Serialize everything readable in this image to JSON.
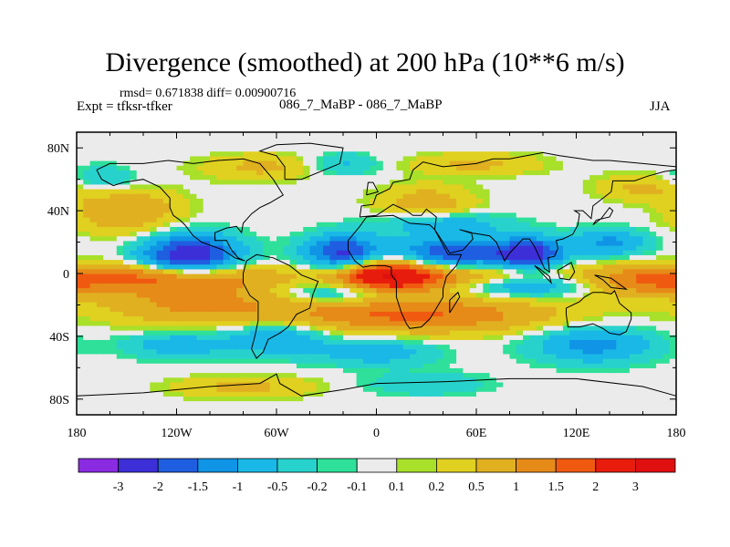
{
  "chart_data": {
    "type": "heatmap",
    "title": "Divergence (smoothed) at 200 hPa (10**6 m/s)",
    "stats_label": "rmsd= 0.671838 diff= 0.00900716",
    "experiment_label": "Expt = tfksr-tfker",
    "case_label": "086_7_MaBP - 086_7_MaBP",
    "season_label": "JJA",
    "x_axis": {
      "range": [
        -180,
        180
      ],
      "ticks": [
        {
          "value": -180,
          "label": "180"
        },
        {
          "value": -120,
          "label": "120W"
        },
        {
          "value": -60,
          "label": "60W"
        },
        {
          "value": 0,
          "label": "0"
        },
        {
          "value": 60,
          "label": "60E"
        },
        {
          "value": 120,
          "label": "120E"
        },
        {
          "value": 180,
          "label": "180"
        }
      ]
    },
    "y_axis": {
      "range": [
        -90,
        90
      ],
      "ticks": [
        {
          "value": 80,
          "label": "80N"
        },
        {
          "value": 40,
          "label": "40N"
        },
        {
          "value": 0,
          "label": "0"
        },
        {
          "value": -40,
          "label": "40S"
        },
        {
          "value": -80,
          "label": "80S"
        }
      ]
    },
    "colorbar": {
      "levels": [
        "-3",
        "-2",
        "-1.5",
        "-1",
        "-0.5",
        "-0.2",
        "-0.1",
        "0.1",
        "0.2",
        "0.5",
        "1",
        "1.5",
        "2",
        "3"
      ],
      "colors": [
        "#8a2be2",
        "#3c2fd8",
        "#1f5ee0",
        "#0f94e6",
        "#19b8e6",
        "#28d2cc",
        "#2ee09a",
        "#ebebeb",
        "#a8e02a",
        "#e0d020",
        "#e0b020",
        "#e68a18",
        "#f05a10",
        "#e81c0c",
        "#e01010"
      ]
    },
    "features": [
      {
        "lon": -112,
        "lat": 12,
        "sx": 20,
        "sy": 9,
        "amp": -2.6
      },
      {
        "lon": -20,
        "lat": 13,
        "sx": 16,
        "sy": 8,
        "amp": -2.3
      },
      {
        "lon": 45,
        "lat": 13,
        "sx": 24,
        "sy": 7,
        "amp": -2.1
      },
      {
        "lon": 92,
        "lat": 13,
        "sx": 14,
        "sy": 7,
        "amp": -2.4
      },
      {
        "lon": 140,
        "lat": 20,
        "sx": 16,
        "sy": 6,
        "amp": -1.1
      },
      {
        "lon": 5,
        "lat": -1,
        "sx": 22,
        "sy": 8,
        "amp": 2.8
      },
      {
        "lon": 60,
        "lat": -2,
        "sx": 40,
        "sy": 6,
        "amp": 1.2
      },
      {
        "lon": -130,
        "lat": -2,
        "sx": 50,
        "sy": 6,
        "amp": 1.5
      },
      {
        "lon": 160,
        "lat": -5,
        "sx": 28,
        "sy": 7,
        "amp": 1.1
      },
      {
        "lon": 90,
        "lat": -7,
        "sx": 30,
        "sy": 5,
        "amp": -1.4
      },
      {
        "lon": -20,
        "lat": -12,
        "sx": 25,
        "sy": 5,
        "amp": -1.1
      },
      {
        "lon": 20,
        "lat": -26,
        "sx": 60,
        "sy": 8,
        "amp": 1.6
      },
      {
        "lon": -110,
        "lat": -18,
        "sx": 40,
        "sy": 10,
        "amp": 1.1
      },
      {
        "lon": -150,
        "lat": 40,
        "sx": 22,
        "sy": 10,
        "amp": 1.0
      },
      {
        "lon": 30,
        "lat": 45,
        "sx": 20,
        "sy": 8,
        "amp": 0.8
      },
      {
        "lon": 40,
        "lat": 32,
        "sx": 26,
        "sy": 5,
        "amp": -0.9
      },
      {
        "lon": -60,
        "lat": -40,
        "sx": 22,
        "sy": 8,
        "amp": -1.0
      },
      {
        "lon": 130,
        "lat": -45,
        "sx": 25,
        "sy": 8,
        "amp": -1.2
      },
      {
        "lon": -120,
        "lat": -45,
        "sx": 22,
        "sy": 6,
        "amp": -0.8
      },
      {
        "lon": 0,
        "lat": -50,
        "sx": 25,
        "sy": 6,
        "amp": -0.8
      },
      {
        "lon": -70,
        "lat": 68,
        "sx": 25,
        "sy": 6,
        "amp": 0.6
      },
      {
        "lon": 60,
        "lat": 70,
        "sx": 28,
        "sy": 5,
        "amp": 0.6
      },
      {
        "lon": -20,
        "lat": 70,
        "sx": 15,
        "sy": 5,
        "amp": -0.6
      },
      {
        "lon": -165,
        "lat": 60,
        "sx": 15,
        "sy": 6,
        "amp": -0.6
      },
      {
        "lon": 160,
        "lat": 55,
        "sx": 20,
        "sy": 6,
        "amp": 0.6
      },
      {
        "lon": -80,
        "lat": -72,
        "sx": 30,
        "sy": 5,
        "amp": 0.6
      },
      {
        "lon": 30,
        "lat": -70,
        "sx": 25,
        "sy": 5,
        "amp": -0.5
      }
    ]
  },
  "map_outlines": [
    [
      [
        -168,
        66
      ],
      [
        -160,
        70
      ],
      [
        -140,
        70
      ],
      [
        -125,
        72
      ],
      [
        -110,
        70
      ],
      [
        -95,
        72
      ],
      [
        -80,
        73
      ],
      [
        -70,
        70
      ],
      [
        -62,
        60
      ],
      [
        -56,
        50
      ],
      [
        -64,
        45
      ],
      [
        -70,
        42
      ],
      [
        -75,
        38
      ],
      [
        -80,
        32
      ],
      [
        -81,
        26
      ],
      [
        -84,
        30
      ],
      [
        -90,
        29
      ],
      [
        -97,
        26
      ],
      [
        -97,
        21
      ],
      [
        -90,
        21
      ],
      [
        -87,
        15
      ],
      [
        -83,
        10
      ],
      [
        -79,
        8
      ],
      [
        -85,
        10
      ],
      [
        -92,
        15
      ],
      [
        -105,
        20
      ],
      [
        -110,
        24
      ],
      [
        -115,
        31
      ],
      [
        -118,
        34
      ],
      [
        -122,
        37
      ],
      [
        -124,
        42
      ],
      [
        -124,
        48
      ],
      [
        -130,
        55
      ],
      [
        -140,
        60
      ],
      [
        -152,
        58
      ],
      [
        -158,
        56
      ],
      [
        -165,
        60
      ],
      [
        -168,
        66
      ]
    ],
    [
      [
        -78,
        8
      ],
      [
        -72,
        12
      ],
      [
        -62,
        10
      ],
      [
        -52,
        5
      ],
      [
        -45,
        -1
      ],
      [
        -35,
        -5
      ],
      [
        -38,
        -13
      ],
      [
        -40,
        -22
      ],
      [
        -48,
        -26
      ],
      [
        -53,
        -34
      ],
      [
        -58,
        -38
      ],
      [
        -65,
        -42
      ],
      [
        -68,
        -50
      ],
      [
        -72,
        -54
      ],
      [
        -75,
        -48
      ],
      [
        -73,
        -40
      ],
      [
        -71,
        -30
      ],
      [
        -71,
        -18
      ],
      [
        -76,
        -14
      ],
      [
        -80,
        -6
      ],
      [
        -80,
        0
      ],
      [
        -78,
        8
      ]
    ],
    [
      [
        -17,
        15
      ],
      [
        -17,
        21
      ],
      [
        -10,
        30
      ],
      [
        -6,
        36
      ],
      [
        10,
        37
      ],
      [
        20,
        32
      ],
      [
        32,
        31
      ],
      [
        35,
        28
      ],
      [
        43,
        12
      ],
      [
        51,
        12
      ],
      [
        48,
        5
      ],
      [
        42,
        -2
      ],
      [
        40,
        -10
      ],
      [
        40,
        -15
      ],
      [
        35,
        -24
      ],
      [
        32,
        -29
      ],
      [
        27,
        -34
      ],
      [
        20,
        -35
      ],
      [
        18,
        -32
      ],
      [
        15,
        -25
      ],
      [
        12,
        -15
      ],
      [
        12,
        -5
      ],
      [
        9,
        -1
      ],
      [
        9,
        4
      ],
      [
        5,
        5
      ],
      [
        -3,
        5
      ],
      [
        -8,
        4
      ],
      [
        -13,
        8
      ],
      [
        -17,
        15
      ]
    ],
    [
      [
        -10,
        36
      ],
      [
        -9,
        43
      ],
      [
        -2,
        44
      ],
      [
        0,
        50
      ],
      [
        8,
        54
      ],
      [
        10,
        58
      ],
      [
        20,
        60
      ],
      [
        22,
        66
      ],
      [
        28,
        71
      ],
      [
        40,
        68
      ],
      [
        60,
        70
      ],
      [
        70,
        73
      ],
      [
        80,
        73
      ],
      [
        100,
        77
      ],
      [
        110,
        75
      ],
      [
        130,
        72
      ],
      [
        140,
        72
      ],
      [
        160,
        70
      ],
      [
        180,
        68
      ]
    ],
    [
      [
        -10,
        36
      ],
      [
        0,
        37
      ],
      [
        10,
        44
      ],
      [
        18,
        40
      ],
      [
        22,
        37
      ],
      [
        27,
        37
      ],
      [
        30,
        41
      ],
      [
        36,
        36
      ],
      [
        35,
        28
      ],
      [
        40,
        20
      ],
      [
        44,
        13
      ],
      [
        52,
        15
      ],
      [
        58,
        22
      ],
      [
        57,
        26
      ],
      [
        50,
        28
      ],
      [
        56,
        26
      ],
      [
        62,
        25
      ],
      [
        68,
        24
      ],
      [
        72,
        20
      ],
      [
        77,
        8
      ],
      [
        80,
        13
      ],
      [
        88,
        22
      ],
      [
        92,
        22
      ],
      [
        95,
        17
      ],
      [
        98,
        10
      ],
      [
        101,
        3
      ],
      [
        104,
        1
      ],
      [
        103,
        10
      ],
      [
        107,
        11
      ],
      [
        109,
        16
      ],
      [
        108,
        21
      ],
      [
        112,
        22
      ],
      [
        118,
        25
      ],
      [
        121,
        31
      ],
      [
        122,
        38
      ],
      [
        119,
        40
      ],
      [
        124,
        40
      ],
      [
        129,
        35
      ],
      [
        130,
        43
      ],
      [
        141,
        52
      ],
      [
        142,
        59
      ],
      [
        155,
        59
      ],
      [
        163,
        62
      ],
      [
        173,
        65
      ],
      [
        180,
        66
      ]
    ],
    [
      [
        114,
        -22
      ],
      [
        114,
        -26
      ],
      [
        115,
        -34
      ],
      [
        122,
        -34
      ],
      [
        130,
        -32
      ],
      [
        136,
        -35
      ],
      [
        140,
        -38
      ],
      [
        146,
        -39
      ],
      [
        150,
        -37
      ],
      [
        153,
        -29
      ],
      [
        153,
        -25
      ],
      [
        146,
        -19
      ],
      [
        143,
        -11
      ],
      [
        141,
        -13
      ],
      [
        136,
        -12
      ],
      [
        130,
        -12
      ],
      [
        125,
        -15
      ],
      [
        122,
        -18
      ],
      [
        114,
        -22
      ]
    ],
    [
      [
        -55,
        60
      ],
      [
        -45,
        60
      ],
      [
        -22,
        70
      ],
      [
        -20,
        80
      ],
      [
        -40,
        83
      ],
      [
        -60,
        82
      ],
      [
        -70,
        78
      ],
      [
        -60,
        75
      ],
      [
        -55,
        68
      ],
      [
        -55,
        60
      ]
    ],
    [
      [
        -180,
        -78
      ],
      [
        -140,
        -76
      ],
      [
        -100,
        -72
      ],
      [
        -70,
        -70
      ],
      [
        -60,
        -64
      ],
      [
        -58,
        -70
      ],
      [
        -45,
        -78
      ],
      [
        -20,
        -74
      ],
      [
        0,
        -70
      ],
      [
        40,
        -69
      ],
      [
        80,
        -67
      ],
      [
        120,
        -67
      ],
      [
        160,
        -72
      ],
      [
        180,
        -78
      ]
    ],
    [
      [
        -6,
        50
      ],
      [
        -5,
        58
      ],
      [
        -2,
        58
      ],
      [
        1,
        52
      ],
      [
        -6,
        50
      ]
    ],
    [
      [
        44,
        -25
      ],
      [
        50,
        -15
      ],
      [
        49,
        -12
      ],
      [
        44,
        -17
      ],
      [
        44,
        -25
      ]
    ],
    [
      [
        130,
        31
      ],
      [
        132,
        34
      ],
      [
        140,
        36
      ],
      [
        142,
        40
      ],
      [
        140,
        42
      ],
      [
        135,
        35
      ],
      [
        130,
        31
      ]
    ],
    [
      [
        95,
        5
      ],
      [
        105,
        -6
      ],
      [
        104,
        -2
      ],
      [
        98,
        3
      ],
      [
        95,
        5
      ]
    ],
    [
      [
        109,
        2
      ],
      [
        117,
        7
      ],
      [
        119,
        1
      ],
      [
        116,
        -4
      ],
      [
        110,
        -3
      ],
      [
        109,
        2
      ]
    ],
    [
      [
        131,
        -1
      ],
      [
        141,
        -3
      ],
      [
        150,
        -10
      ],
      [
        141,
        -9
      ],
      [
        136,
        -4
      ],
      [
        131,
        -1
      ]
    ]
  ]
}
